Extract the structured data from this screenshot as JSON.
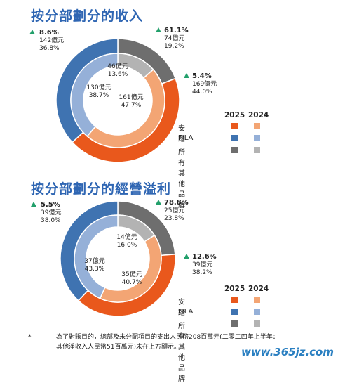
{
  "colors": {
    "anta_2025": "#e9581c",
    "anta_2024": "#f3a574",
    "fila_2025": "#3f73b1",
    "fila_2024": "#95b0d8",
    "other_2025": "#6e6e6e",
    "other_2024": "#b3b3b3",
    "title": "#2f66b3",
    "up_arrow": "#22a06b"
  },
  "chart_data": [
    {
      "type": "donut",
      "title": "按分部劃分的收入",
      "legend": {
        "year_2025": "2025",
        "year_2024": "2024",
        "entries": [
          "安踏",
          "FILA",
          "所有其他品牌"
        ]
      },
      "series": [
        {
          "name": "2025",
          "segments": [
            {
              "label": "安踏",
              "value": 169,
              "pct": 44.0,
              "growth": 5.4
            },
            {
              "label": "FILA",
              "value": 142,
              "pct": 36.8,
              "growth": 8.6
            },
            {
              "label": "所有其他品牌",
              "value": 74,
              "pct": 19.2,
              "growth": 61.1
            }
          ]
        },
        {
          "name": "2024",
          "segments": [
            {
              "label": "安踏",
              "value": 161,
              "pct": 47.7
            },
            {
              "label": "FILA",
              "value": 130,
              "pct": 38.7
            },
            {
              "label": "所有其他品牌",
              "value": 46,
              "pct": 13.6
            }
          ]
        }
      ],
      "annotations": {
        "outer_anta": {
          "growth": "5.4%",
          "value": "169億元",
          "pct": "44.0%"
        },
        "outer_fila": {
          "growth": "8.6%",
          "value": "142億元",
          "pct": "36.8%"
        },
        "outer_other": {
          "growth": "61.1%",
          "value": "74億元",
          "pct": "19.2%"
        },
        "inner_anta": {
          "value": "161億元",
          "pct": "47.7%"
        },
        "inner_fila": {
          "value": "130億元",
          "pct": "38.7%"
        },
        "inner_other": {
          "value": "46億元",
          "pct": "13.6%"
        }
      }
    },
    {
      "type": "donut",
      "title": "按分部劃分的經營溢利",
      "legend": {
        "year_2025": "2025",
        "year_2024": "2024",
        "entries": [
          "安踏",
          "FILA",
          "所有其他品牌"
        ]
      },
      "series": [
        {
          "name": "2025",
          "segments": [
            {
              "label": "安踏",
              "value": 39,
              "pct": 38.2,
              "growth": 12.6
            },
            {
              "label": "FILA",
              "value": 39,
              "pct": 38.0,
              "growth": 5.5
            },
            {
              "label": "所有其他品牌",
              "value": 25,
              "pct": 23.8,
              "growth": 78.8
            }
          ]
        },
        {
          "name": "2024",
          "segments": [
            {
              "label": "安踏",
              "value": 35,
              "pct": 40.7
            },
            {
              "label": "FILA",
              "value": 37,
              "pct": 43.3
            },
            {
              "label": "所有其他品牌",
              "value": 14,
              "pct": 16.0
            }
          ]
        }
      ],
      "annotations": {
        "outer_anta": {
          "growth": "12.6%",
          "value": "39億元",
          "pct": "38.2%"
        },
        "outer_fila": {
          "growth": "5.5%",
          "value": "39億元",
          "pct": "38.0%"
        },
        "outer_other": {
          "growth": "78.8%",
          "value": "25億元",
          "pct": "23.8%"
        },
        "inner_anta": {
          "value": "35億元",
          "pct": "40.7%"
        },
        "inner_fila": {
          "value": "37億元",
          "pct": "43.3%"
        },
        "inner_other": {
          "value": "14億元",
          "pct": "16.0%"
        }
      }
    }
  ],
  "footnote": {
    "star": "*",
    "line1": "為了對賬目的，總部及未分配項目的支出人民幣208百萬元(二零二四年上半年：",
    "line2": "其他淨收入人民幣51百萬元)未在上方顯示。"
  },
  "watermark": "www.365jz.com"
}
